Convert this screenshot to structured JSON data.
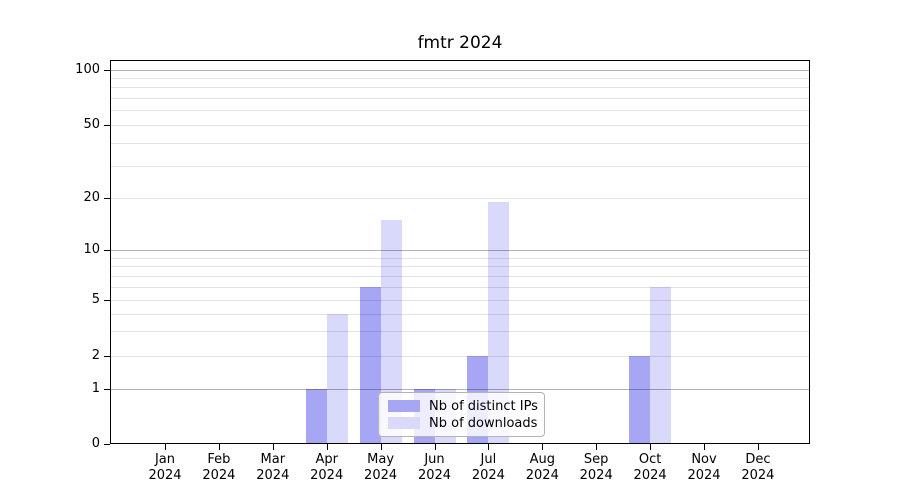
{
  "title": "fmtr 2024",
  "chart_data": {
    "type": "bar",
    "title": "fmtr 2024",
    "months": [
      "Jan",
      "Feb",
      "Mar",
      "Apr",
      "May",
      "Jun",
      "Jul",
      "Aug",
      "Sep",
      "Oct",
      "Nov",
      "Dec"
    ],
    "year_label": "2024",
    "series": [
      {
        "name": "Nb of distinct IPs",
        "color": "#a6a6f5",
        "values": [
          0,
          0,
          0,
          1,
          6,
          1,
          2,
          0,
          0,
          2,
          0,
          0
        ]
      },
      {
        "name": "Nb of downloads",
        "color": "#d9d9fb",
        "values": [
          0,
          0,
          0,
          4,
          15,
          1,
          19,
          0,
          0,
          6,
          0,
          0
        ]
      }
    ],
    "y_ticks": [
      0,
      1,
      2,
      5,
      10,
      20,
      50,
      100
    ],
    "y_minor_ticks": [
      3,
      4,
      6,
      7,
      8,
      9,
      30,
      40,
      60,
      70,
      80,
      90
    ],
    "y_scale": "symlog",
    "ylim": [
      0,
      112
    ],
    "grid": true,
    "legend_position": "lower center"
  }
}
